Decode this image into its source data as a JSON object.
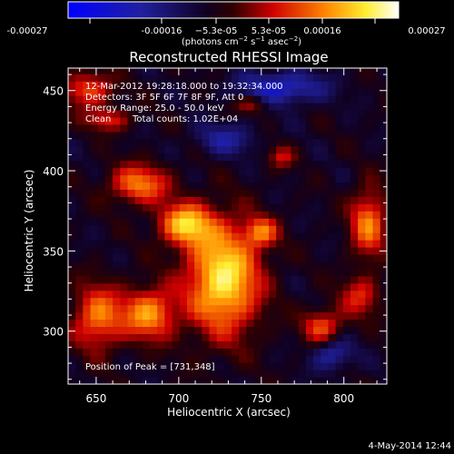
{
  "colorbar": {
    "ticks": [
      "-0.00027",
      "-0.00016",
      "−5.3e-05",
      "5.3e-05",
      "0.00016",
      "0.00027"
    ],
    "unit_parts": {
      "pre": "(photons cm",
      "exp1": "−2",
      "mid1": " s",
      "exp2": "−1",
      "mid2": " asec",
      "exp3": "−2",
      "post": ")"
    }
  },
  "chart_data": {
    "type": "heatmap",
    "title": "Reconstructed RHESSI Image",
    "xlabel": "Heliocentric X (arcsec)",
    "ylabel": "Heliocentric Y (arcsec)",
    "xlim": [
      633,
      826
    ],
    "ylim": [
      267,
      464
    ],
    "xticks": [
      650,
      700,
      750,
      800
    ],
    "yticks": [
      300,
      350,
      400,
      450
    ],
    "color_scale": {
      "min": -0.00027,
      "max": 0.00027,
      "colormap": "blue-black-red-yellow-white"
    },
    "peak_position": [
      731,
      348
    ],
    "emission_regions": [
      {
        "x": 727,
        "y": 333,
        "rx": 22,
        "ry": 34,
        "value": 0.00027
      },
      {
        "x": 704,
        "y": 367,
        "rx": 16,
        "ry": 13,
        "value": 0.00022
      },
      {
        "x": 676,
        "y": 392,
        "rx": 18,
        "ry": 12,
        "value": 0.00018
      },
      {
        "x": 682,
        "y": 311,
        "rx": 16,
        "ry": 16,
        "value": 0.0002
      },
      {
        "x": 651,
        "y": 309,
        "rx": 15,
        "ry": 20,
        "value": 0.00018
      },
      {
        "x": 750,
        "y": 362,
        "rx": 10,
        "ry": 9,
        "value": 0.00015
      },
      {
        "x": 787,
        "y": 303,
        "rx": 12,
        "ry": 11,
        "value": 0.00015
      },
      {
        "x": 815,
        "y": 368,
        "rx": 11,
        "ry": 21,
        "value": 0.00018
      },
      {
        "x": 810,
        "y": 322,
        "rx": 12,
        "ry": 13,
        "value": 0.00012
      },
      {
        "x": 762,
        "y": 409,
        "rx": 8,
        "ry": 7,
        "value": 0.0001
      },
      {
        "x": 645,
        "y": 451,
        "rx": 15,
        "ry": 11,
        "value": 0.00015
      },
      {
        "x": 744,
        "y": 442,
        "rx": 10,
        "ry": 6,
        "value": 0.0001
      },
      {
        "x": 657,
        "y": 432,
        "rx": 14,
        "ry": 7,
        "value": 0.00012
      },
      {
        "x": 762,
        "y": 452,
        "rx": 26,
        "ry": 10,
        "value": -0.00015
      },
      {
        "x": 793,
        "y": 286,
        "rx": 12,
        "ry": 10,
        "value": -0.00012
      },
      {
        "x": 728,
        "y": 420,
        "rx": 18,
        "ry": 10,
        "value": -0.0001
      }
    ]
  },
  "annotations": {
    "time_range": "12-Mar-2012 19:28:18.000 to 19:32:34.000",
    "detectors": "Detectors: 3F 5F 6F 7F 8F 9F, Att 0",
    "energy_range": "Energy Range: 25.0 - 50.0 keV",
    "algorithm": "Clean",
    "total_counts": "Total counts: 1.02E+04",
    "peak_label": "Position of Peak = [731,348]"
  },
  "footer": {
    "date": "4-May-2014 12:44"
  }
}
